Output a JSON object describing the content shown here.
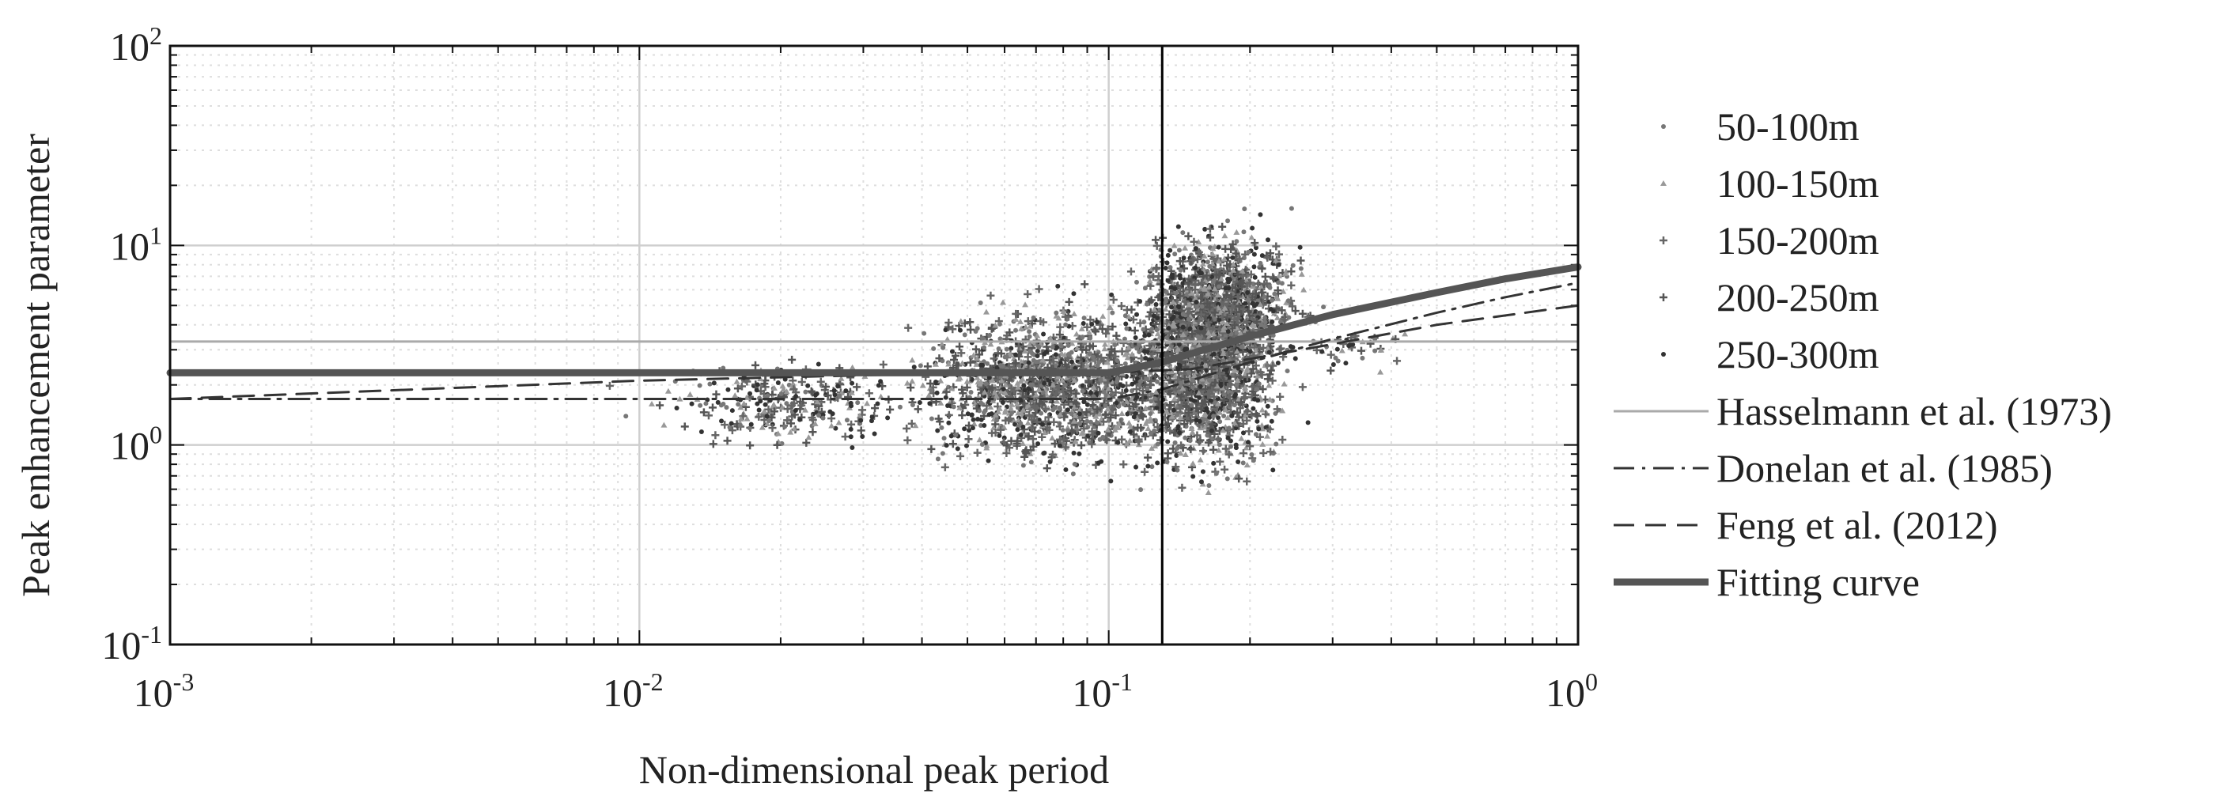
{
  "chart_data": {
    "type": "scatter",
    "title": "",
    "xlabel": "Non-dimensional peak period",
    "ylabel": "Peak enhancement parameter",
    "xscale": "log",
    "yscale": "log",
    "xlim": [
      0.001,
      1
    ],
    "ylim": [
      0.1,
      100
    ],
    "grid": true,
    "legend_position": "right-outside",
    "x_ticks": [
      {
        "base": "10",
        "exp": "-3"
      },
      {
        "base": "10",
        "exp": "-2"
      },
      {
        "base": "10",
        "exp": "-1"
      },
      {
        "base": "10",
        "exp": "0"
      }
    ],
    "y_ticks": [
      {
        "base": "10",
        "exp": "-1"
      },
      {
        "base": "10",
        "exp": "0"
      },
      {
        "base": "10",
        "exp": "1"
      },
      {
        "base": "10",
        "exp": "2"
      }
    ],
    "vertical_line_x": 0.13,
    "scatter_series": [
      {
        "name": "50-100m",
        "marker": "dot",
        "color": "#777777"
      },
      {
        "name": "100-150m",
        "marker": "triangle",
        "color": "#999999"
      },
      {
        "name": "150-200m",
        "marker": "plus",
        "color": "#666666"
      },
      {
        "name": "200-250m",
        "marker": "plus",
        "color": "#555555"
      },
      {
        "name": "250-300m",
        "marker": "dot",
        "color": "#333333"
      }
    ],
    "scatter_clusters": [
      {
        "log_x_range": [
          -2.0,
          -1.35
        ],
        "log_y_range": [
          -0.05,
          0.45
        ],
        "count": 300
      },
      {
        "log_x_range": [
          -1.45,
          -0.8
        ],
        "log_y_range": [
          -0.15,
          0.75
        ],
        "count": 1400
      },
      {
        "log_x_range": [
          -1.0,
          -0.6
        ],
        "log_y_range": [
          -0.25,
          1.1
        ],
        "count": 1600
      },
      {
        "log_x_range": [
          -0.95,
          -0.55
        ],
        "log_y_range": [
          0.3,
          1.15
        ],
        "count": 700
      },
      {
        "log_x_range": [
          -0.6,
          -0.35
        ],
        "log_y_range": [
          0.35,
          0.65
        ],
        "count": 40
      }
    ],
    "line_series": [
      {
        "name": "Hasselmann et al. (1973)",
        "style": "solid",
        "width": 3,
        "color": "#aaaaaa",
        "x": [
          0.001,
          1
        ],
        "y": [
          3.3,
          3.3
        ]
      },
      {
        "name": "Donelan et al. (1985)",
        "style": "dashdot",
        "width": 3,
        "color": "#333333",
        "x": [
          0.001,
          0.1,
          0.13,
          0.2,
          0.3,
          0.5,
          0.7,
          1.0
        ],
        "y": [
          1.7,
          1.7,
          1.9,
          2.6,
          3.4,
          4.6,
          5.5,
          6.5
        ]
      },
      {
        "name": "Feng et al. (2012)",
        "style": "dashed",
        "width": 3,
        "color": "#333333",
        "x": [
          0.001,
          0.01,
          0.05,
          0.1,
          0.15,
          0.2,
          0.3,
          0.5,
          1.0
        ],
        "y": [
          1.7,
          2.1,
          2.3,
          2.3,
          2.4,
          2.7,
          3.2,
          4.0,
          5.0
        ]
      },
      {
        "name": "Fitting curve",
        "style": "solid",
        "width": 9,
        "color": "#555555",
        "x": [
          0.001,
          0.05,
          0.1,
          0.13,
          0.2,
          0.3,
          0.5,
          0.7,
          1.0
        ],
        "y": [
          2.3,
          2.3,
          2.3,
          2.6,
          3.5,
          4.5,
          5.8,
          6.8,
          7.8
        ]
      }
    ]
  }
}
